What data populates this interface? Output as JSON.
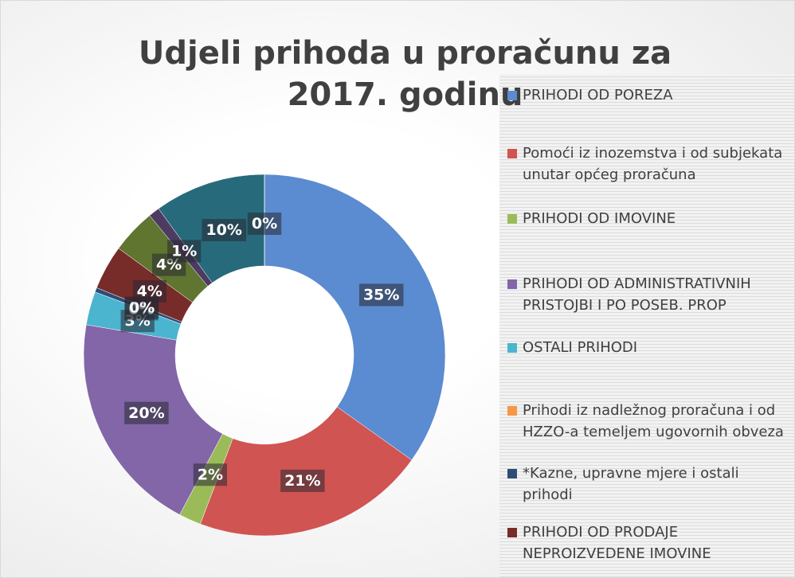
{
  "chart_data": {
    "type": "pie",
    "donut": true,
    "title": "Udjeli prihoda u proračunu za 2017. godinu",
    "categories": [
      "PRIHODI OD POREZA",
      "Pomoći iz inozemstva i od subjekata unutar općeg proračuna",
      "PRIHODI OD IMOVINE",
      "PRIHODI OD ADMINISTRATIVNIH PRISTOJBI I PO POSEB. PROP",
      "OSTALI PRIHODI",
      "Prihodi iz nadležnog proračuna i od HZZO-a temeljem ugovornih obveza",
      "*Kazne, upravne mjere i ostali prihodi",
      "PRIHODI OD PRODAJE NEPROIZVEDENE  IMOVINE",
      null,
      null,
      null,
      null
    ],
    "values": [
      35,
      21,
      2,
      20,
      3,
      0,
      0.4,
      4,
      4,
      1,
      10,
      0
    ],
    "value_labels": [
      "35%",
      "21%",
      "2%",
      "20%",
      "3%",
      "0%",
      "0%",
      "4%",
      "4%",
      "1%",
      "10%",
      "0%"
    ],
    "colors": [
      "#5b8bd0",
      "#d05452",
      "#9bbb59",
      "#8266a8",
      "#4bb4cf",
      "#f79646",
      "#2c4d75",
      "#772c2a",
      "#5f7530",
      "#4d3b62",
      "#276a7c",
      "#729aca"
    ]
  }
}
